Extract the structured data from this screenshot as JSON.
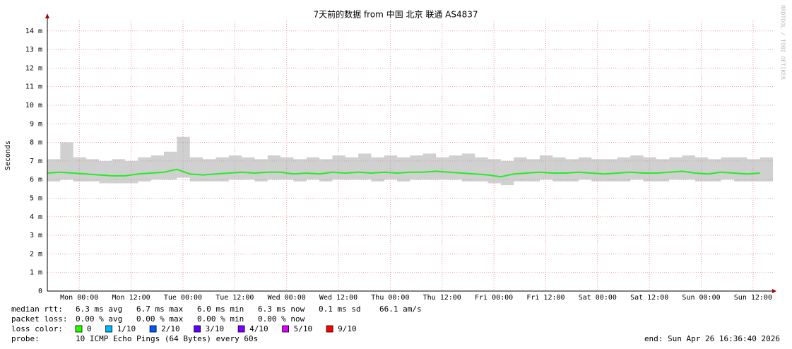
{
  "chart_data": {
    "type": "smokeping",
    "title": "7天前的数据 from  中国 北京 联通 AS4837",
    "ylabel": "Seconds",
    "watermark": "RRDTOOL / TOBI OETIKER",
    "ylim": [
      0,
      0.0146
    ],
    "yticks": [
      0,
      {
        "value": 0.001,
        "label": "1 m"
      },
      {
        "value": 0.002,
        "label": "2 m"
      },
      {
        "value": 0.003,
        "label": "3 m"
      },
      {
        "value": 0.004,
        "label": "4 m"
      },
      {
        "value": 0.005,
        "label": "5 m"
      },
      {
        "value": 0.006,
        "label": "6 m"
      },
      {
        "value": 0.007,
        "label": "7 m"
      },
      {
        "value": 0.008,
        "label": "8 m"
      },
      {
        "value": 0.009,
        "label": "9 m"
      },
      {
        "value": 0.01,
        "label": "10 m"
      },
      {
        "value": 0.011,
        "label": "11 m"
      },
      {
        "value": 0.012,
        "label": "12 m"
      },
      {
        "value": 0.013,
        "label": "13 m"
      },
      {
        "value": 0.014,
        "label": "14 m"
      }
    ],
    "xlim": [
      0,
      168
    ],
    "xticks": [
      {
        "value": 7.4,
        "label": "Mon 00:00"
      },
      {
        "value": 19.4,
        "label": "Mon 12:00"
      },
      {
        "value": 31.4,
        "label": "Tue 00:00"
      },
      {
        "value": 43.4,
        "label": "Tue 12:00"
      },
      {
        "value": 55.4,
        "label": "Wed 00:00"
      },
      {
        "value": 67.4,
        "label": "Wed 12:00"
      },
      {
        "value": 79.4,
        "label": "Thu 00:00"
      },
      {
        "value": 91.4,
        "label": "Thu 12:00"
      },
      {
        "value": 103.4,
        "label": "Fri 00:00"
      },
      {
        "value": 115.4,
        "label": "Fri 12:00"
      },
      {
        "value": 127.4,
        "label": "Sat 00:00"
      },
      {
        "value": 139.4,
        "label": "Sat 12:00"
      },
      {
        "value": 151.4,
        "label": "Sun 00:00"
      },
      {
        "value": 163.4,
        "label": "Sun 12:00"
      }
    ],
    "grid": true,
    "x": [
      0,
      3,
      6,
      9,
      12,
      15,
      18,
      21,
      24,
      27,
      30,
      33,
      36,
      39,
      42,
      45,
      48,
      51,
      54,
      57,
      60,
      63,
      66,
      69,
      72,
      75,
      78,
      81,
      84,
      87,
      90,
      93,
      96,
      99,
      102,
      105,
      108,
      111,
      114,
      117,
      120,
      123,
      126,
      129,
      132,
      135,
      138,
      141,
      144,
      147,
      150,
      153,
      156,
      159,
      162,
      165
    ],
    "series": [
      {
        "name": "median rtt:",
        "color": "#22ee22",
        "values": [
          0.00635,
          0.0064,
          0.00635,
          0.0063,
          0.00625,
          0.0062,
          0.0062,
          0.0063,
          0.00635,
          0.0064,
          0.00655,
          0.0063,
          0.00625,
          0.0063,
          0.00635,
          0.0064,
          0.00635,
          0.0064,
          0.0064,
          0.0063,
          0.00635,
          0.0063,
          0.0064,
          0.00635,
          0.0064,
          0.00635,
          0.0064,
          0.00635,
          0.0064,
          0.0064,
          0.00645,
          0.0064,
          0.00635,
          0.0063,
          0.00625,
          0.00615,
          0.0063,
          0.00635,
          0.0064,
          0.00635,
          0.00635,
          0.0064,
          0.00635,
          0.0063,
          0.00635,
          0.0064,
          0.00635,
          0.00635,
          0.0064,
          0.00645,
          0.00635,
          0.0063,
          0.0064,
          0.00635,
          0.0063,
          0.00635
        ]
      },
      {
        "color": "#aaaaaa",
        "values": [
          0.0071,
          0.008,
          0.0072,
          0.0071,
          0.007,
          0.0071,
          0.007,
          0.0072,
          0.0073,
          0.0075,
          0.0083,
          0.0072,
          0.0071,
          0.0072,
          0.0073,
          0.0072,
          0.0071,
          0.0073,
          0.0072,
          0.0071,
          0.0072,
          0.0071,
          0.0073,
          0.0072,
          0.0074,
          0.0072,
          0.0073,
          0.0072,
          0.0073,
          0.0074,
          0.0072,
          0.0073,
          0.0074,
          0.0072,
          0.0071,
          0.007,
          0.0072,
          0.0071,
          0.0073,
          0.0072,
          0.0071,
          0.0072,
          0.0071,
          0.0071,
          0.0072,
          0.0073,
          0.0072,
          0.0071,
          0.0072,
          0.0073,
          0.0072,
          0.0071,
          0.0072,
          0.0072,
          0.0071,
          0.0072
        ]
      },
      {
        "color": "#aaaaaa",
        "values": [
          0.0059,
          0.006,
          0.0059,
          0.0059,
          0.0058,
          0.0058,
          0.0058,
          0.0059,
          0.006,
          0.006,
          0.0061,
          0.0059,
          0.0059,
          0.0059,
          0.006,
          0.006,
          0.0059,
          0.006,
          0.006,
          0.0059,
          0.006,
          0.0059,
          0.006,
          0.006,
          0.006,
          0.0059,
          0.006,
          0.0059,
          0.006,
          0.006,
          0.006,
          0.006,
          0.0059,
          0.0059,
          0.0058,
          0.0057,
          0.0059,
          0.0059,
          0.006,
          0.0059,
          0.0059,
          0.006,
          0.0059,
          0.0059,
          0.0059,
          0.006,
          0.0059,
          0.0059,
          0.006,
          0.006,
          0.0059,
          0.0059,
          0.006,
          0.0059,
          0.0059,
          0.0059
        ]
      }
    ],
    "stats": {
      "median_rtt": [
        "6.3 ms avg",
        "6.7 ms max",
        "6.0 ms min",
        "6.3 ms now",
        "0.1 ms sd",
        "66.1   am/s"
      ],
      "packet_loss_label": "packet loss:",
      "packet_loss": [
        "0.00 % avg",
        "0.00 % max",
        "0.00 % min",
        "0.00 % now"
      ],
      "loss_color_label": "loss color:",
      "loss_colors": [
        {
          "name": "0",
          "color": "#26ff00"
        },
        {
          "name": "1/10",
          "color": "#00b8ff"
        },
        {
          "name": "2/10",
          "color": "#0059ff"
        },
        {
          "name": "3/10",
          "color": "#5e00ff"
        },
        {
          "name": "4/10",
          "color": "#7e00ff"
        },
        {
          "name": "5/10",
          "color": "#dd00ff"
        },
        {
          "name": "9/10",
          "color": "#ff0000"
        }
      ],
      "probe_label": "probe:",
      "probe": "10 ICMP Echo Pings (64 Bytes) every 60s",
      "end": "end: Sun Apr 26 16:36:40 2026"
    }
  }
}
